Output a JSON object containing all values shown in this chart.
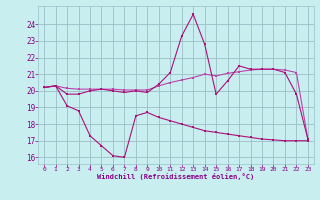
{
  "xlabel": "Windchill (Refroidissement éolien,°C)",
  "x": [
    0,
    1,
    2,
    3,
    4,
    5,
    6,
    7,
    8,
    9,
    10,
    11,
    12,
    13,
    14,
    15,
    16,
    17,
    18,
    19,
    20,
    21,
    22,
    23
  ],
  "line1": [
    20.2,
    20.3,
    19.8,
    19.8,
    20.0,
    20.1,
    20.0,
    19.9,
    20.0,
    19.9,
    20.4,
    21.1,
    23.3,
    24.6,
    22.8,
    19.8,
    20.6,
    21.5,
    21.3,
    21.3,
    21.3,
    21.1,
    19.8,
    17.1
  ],
  "line2": [
    20.2,
    20.3,
    20.15,
    20.1,
    20.1,
    20.1,
    20.1,
    20.05,
    20.05,
    20.05,
    20.3,
    20.5,
    20.65,
    20.8,
    21.0,
    20.9,
    21.05,
    21.15,
    21.25,
    21.3,
    21.3,
    21.25,
    21.1,
    17.1
  ],
  "line3": [
    20.2,
    20.3,
    19.1,
    18.8,
    17.3,
    16.7,
    16.1,
    16.0,
    18.5,
    18.7,
    18.4,
    18.2,
    18.0,
    17.8,
    17.6,
    17.5,
    17.4,
    17.3,
    17.2,
    17.1,
    17.05,
    17.0,
    17.0,
    17.0
  ],
  "line_color1": "#aa1177",
  "line_color2": "#bb44aa",
  "line_color3": "#aa1177",
  "bg_color": "#c8eef0",
  "grid_color": "#9bbfc8",
  "text_color": "#880088",
  "ylim": [
    15.6,
    25.1
  ],
  "yticks": [
    16,
    17,
    18,
    19,
    20,
    21,
    22,
    23,
    24
  ],
  "xlim": [
    -0.5,
    23.5
  ],
  "xticks": [
    0,
    1,
    2,
    3,
    4,
    5,
    6,
    7,
    8,
    9,
    10,
    11,
    12,
    13,
    14,
    15,
    16,
    17,
    18,
    19,
    20,
    21,
    22,
    23
  ]
}
